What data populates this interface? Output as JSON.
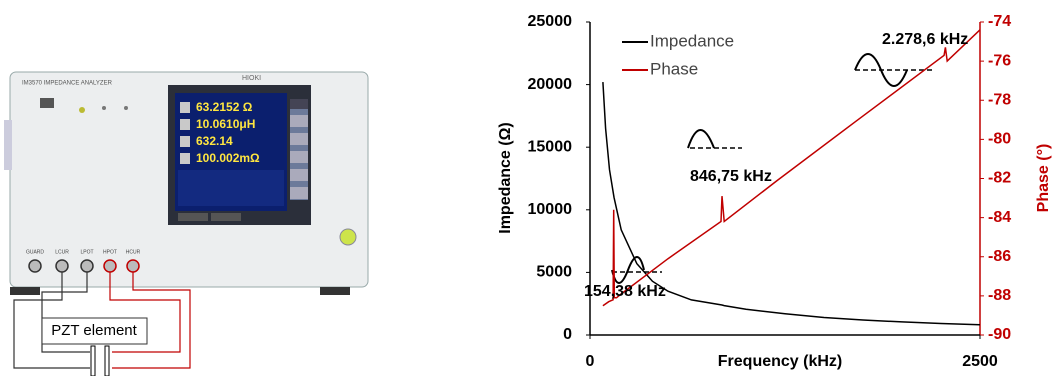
{
  "chart_data": {
    "type": "line",
    "xlabel": "Frequency (kHz)",
    "ylabel": "Impedance (Ω)",
    "y2label": "Phase (°)",
    "xlim": [
      0,
      2500
    ],
    "xticks": [
      0,
      2500
    ],
    "ylim": [
      0,
      25000
    ],
    "yticks": [
      0,
      5000,
      10000,
      15000,
      20000,
      25000
    ],
    "y2lim": [
      -90,
      -74
    ],
    "y2ticks": [
      -90,
      -88,
      -86,
      -84,
      -82,
      -80,
      -78,
      -76,
      -74
    ],
    "legend": "upper left",
    "grid": false,
    "series": [
      {
        "name": "Impedance",
        "color": "#000000",
        "x": [
          83,
          100,
          125,
          154,
          200,
          300,
          400,
          500,
          650,
          846,
          860,
          1000,
          1250,
          1500,
          1750,
          2000,
          2250,
          2500
        ],
        "values": [
          20200,
          16500,
          13200,
          11000,
          8400,
          5700,
          4300,
          3500,
          2800,
          2400,
          2350,
          2050,
          1700,
          1400,
          1200,
          1050,
          920,
          820
        ]
      },
      {
        "name": "Phase",
        "color": "#c00000",
        "axis": "y2",
        "x": [
          83,
          120,
          148,
          152,
          156,
          170,
          200,
          500,
          840,
          846,
          860,
          1200,
          1700,
          2270,
          2278,
          2290,
          2500
        ],
        "values": [
          -88.5,
          -88.3,
          -88.2,
          -83.6,
          -88.1,
          -88.1,
          -87.9,
          -86.1,
          -84.2,
          -82.9,
          -84.2,
          -82.1,
          -79.1,
          -75.7,
          -75.3,
          -76.0,
          -74.4
        ]
      }
    ],
    "annotations": [
      "154,38 kHz",
      "846,75 kHz",
      "2.278,6 kHz"
    ]
  },
  "instrument": {
    "model": "IM3570 IMPEDANCE ANALYZER",
    "brand": "HIOKI",
    "readings": [
      "63.2152 Ω",
      "10.0610μH",
      "632.14",
      "100.002mΩ"
    ],
    "terminals": [
      "GUARD",
      "LCUR",
      "LPOT",
      "HPOT",
      "HCUR"
    ]
  },
  "diagram": {
    "element": "PZT element"
  }
}
